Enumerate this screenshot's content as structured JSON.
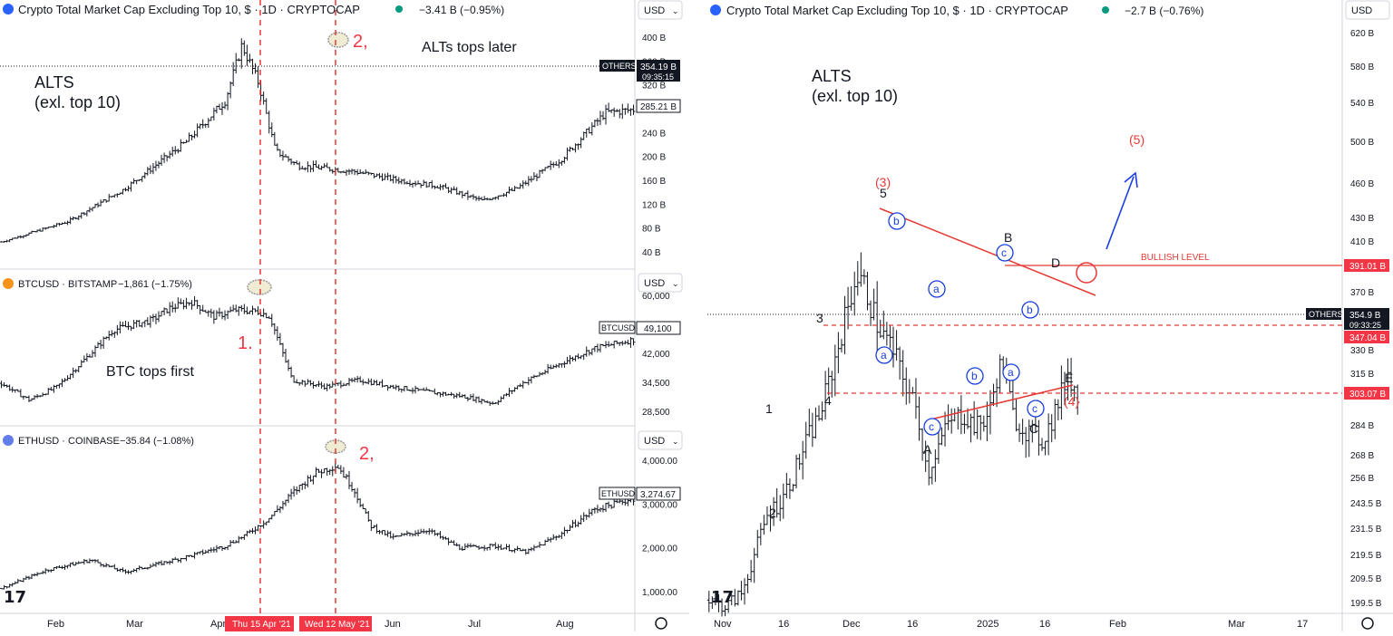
{
  "left": {
    "altsPanel": {
      "header": "Crypto Total Market Cap Excluding Top 10, $ · 1D · CRYPTOCAP",
      "change": "−3.41 B (−0.95%)",
      "currency": "USD",
      "annotationMain": "ALTS",
      "annotationSub": "(exl. top 10)",
      "annotationTops": "ALTs tops later",
      "peakLabel": "2,",
      "ticks": [
        "400 B",
        "360 B",
        "320 B",
        "280 B",
        "240 B",
        "200 B",
        "160 B",
        "120 B",
        "80 B",
        "40 B"
      ],
      "tagOthers": "OTHERS",
      "tagOthersValue": "354.19 B",
      "tagOthersTime": "09:35:15",
      "tagSecond": "285.21 B",
      "series": {
        "start": 60,
        "pts": [
          [
            0,
            60
          ],
          [
            12,
            95
          ],
          [
            22,
            150
          ],
          [
            33,
            230
          ],
          [
            36,
            260
          ],
          [
            40,
            300
          ],
          [
            43,
            395
          ],
          [
            46,
            330
          ],
          [
            49,
            215
          ],
          [
            53,
            190
          ],
          [
            63,
            180
          ],
          [
            71,
            165
          ],
          [
            78,
            155
          ],
          [
            86,
            130
          ],
          [
            92,
            150
          ],
          [
            100,
            200
          ],
          [
            108,
            280
          ],
          [
            113,
            285
          ]
        ],
        "lo": 40,
        "hi": 410
      }
    },
    "btcPanel": {
      "header": "BTCUSD · BITSTAMP",
      "change": "−1,861 (−1.75%)",
      "currency": "USD",
      "annotationTops": "BTC tops first",
      "peakLabel": "1.",
      "ticks": [
        "60,000",
        "49,500",
        "42,000",
        "34,500",
        "28,500"
      ],
      "tagSymbol": "BTCUSD",
      "tagValue": "49,100",
      "series": {
        "pts": [
          [
            0,
            36000
          ],
          [
            5,
            31000
          ],
          [
            10,
            35000
          ],
          [
            16,
            45000
          ],
          [
            20,
            52000
          ],
          [
            27,
            55000
          ],
          [
            30,
            58500
          ],
          [
            34,
            60500
          ],
          [
            38,
            56000
          ],
          [
            42,
            58000
          ],
          [
            46,
            57500
          ],
          [
            48,
            56000
          ],
          [
            52,
            37000
          ],
          [
            58,
            35000
          ],
          [
            64,
            37000
          ],
          [
            70,
            35000
          ],
          [
            76,
            33500
          ],
          [
            83,
            32000
          ],
          [
            88,
            30000
          ],
          [
            93,
            36000
          ],
          [
            100,
            42000
          ],
          [
            106,
            46500
          ],
          [
            113,
            49100
          ]
        ],
        "lo": 26000,
        "hi": 64000
      }
    },
    "ethPanel": {
      "header": "ETHUSD · COINBASE",
      "change": "−35.84 (−1.08%)",
      "currency": "USD",
      "peakLabel": "2,",
      "ticks": [
        "4,000.00",
        "3,000.00",
        "2,000.00",
        "1,000.00"
      ],
      "tagSymbol": "ETHUSD",
      "tagValue": "3,274.67",
      "series": {
        "pts": [
          [
            0,
            1050
          ],
          [
            8,
            1500
          ],
          [
            16,
            1750
          ],
          [
            22,
            1450
          ],
          [
            28,
            1650
          ],
          [
            35,
            1900
          ],
          [
            40,
            2100
          ],
          [
            44,
            2400
          ],
          [
            48,
            2800
          ],
          [
            52,
            3400
          ],
          [
            56,
            3900
          ],
          [
            60,
            4100
          ],
          [
            63,
            3500
          ],
          [
            66,
            2600
          ],
          [
            70,
            2300
          ],
          [
            76,
            2500
          ],
          [
            82,
            2050
          ],
          [
            88,
            2100
          ],
          [
            94,
            1950
          ],
          [
            100,
            2400
          ],
          [
            106,
            3000
          ],
          [
            113,
            3275
          ]
        ],
        "lo": 700,
        "hi": 4400
      }
    },
    "vlineLabels": [
      "Thu 15 Apr '21",
      "Wed 12 May '21"
    ],
    "xlabels": [
      "Feb",
      "Mar",
      "Apr",
      "Jun",
      "Jul",
      "Aug"
    ]
  },
  "right": {
    "header": "Crypto Total Market Cap Excluding Top 10, $ · 1D · CRYPTOCAP",
    "change": "−2.7 B (−0.76%)",
    "currency": "USD",
    "annotationMain": "ALTS",
    "annotationSub": "(exl. top 10)",
    "ticks": [
      "620 B",
      "580 B",
      "540 B",
      "500 B",
      "460 B",
      "430 B",
      "410 B",
      "370 B",
      "330 B",
      "315 B",
      "284 B",
      "268 B",
      "256 B",
      "243.5 B",
      "231.5 B",
      "219.5 B",
      "209.5 B",
      "199.5 B"
    ],
    "tagOthers": "OTHERS",
    "tagOthersValue": "354.9 B",
    "tagOthersTime": "09:33:25",
    "tagBullish": "391.01 B",
    "tagLevelA": "347.04 B",
    "tagLevelB": "303.07 B",
    "bullishLabel": "BULLISH LEVEL",
    "waves": {
      "w3": "(3)",
      "w4": "(4)",
      "w5": "(5)",
      "n1": "1",
      "n2": "2",
      "n3": "3",
      "n4": "4",
      "n5": "5",
      "A": "A",
      "B": "B",
      "C": "C",
      "D": "D",
      "E": "E"
    },
    "subwaves": [
      "b",
      "a",
      "a",
      "c",
      "b",
      "c",
      "a",
      "b",
      "c"
    ],
    "xlabels": [
      "Nov",
      "16",
      "Dec",
      "16",
      "2025",
      "16",
      "Feb",
      "Mar",
      "17"
    ],
    "series": {
      "pts": [
        [
          0,
          205
        ],
        [
          5,
          200
        ],
        [
          10,
          210
        ],
        [
          14,
          240
        ],
        [
          18,
          270
        ],
        [
          22,
          280
        ],
        [
          26,
          300
        ],
        [
          30,
          325
        ],
        [
          34,
          345
        ],
        [
          38,
          380
        ],
        [
          42,
          420
        ],
        [
          45,
          450
        ],
        [
          48,
          440
        ],
        [
          52,
          410
        ],
        [
          56,
          395
        ],
        [
          60,
          370
        ],
        [
          64,
          345
        ],
        [
          67,
          300
        ],
        [
          70,
          320
        ],
        [
          74,
          340
        ],
        [
          78,
          345
        ],
        [
          82,
          335
        ],
        [
          86,
          345
        ],
        [
          88,
          372
        ],
        [
          90,
          385
        ],
        [
          93,
          345
        ],
        [
          96,
          335
        ],
        [
          99,
          330
        ],
        [
          102,
          325
        ],
        [
          105,
          340
        ],
        [
          108,
          360
        ],
        [
          110,
          378
        ],
        [
          113,
          358
        ]
      ],
      "lo": 195,
      "hi": 630
    }
  }
}
